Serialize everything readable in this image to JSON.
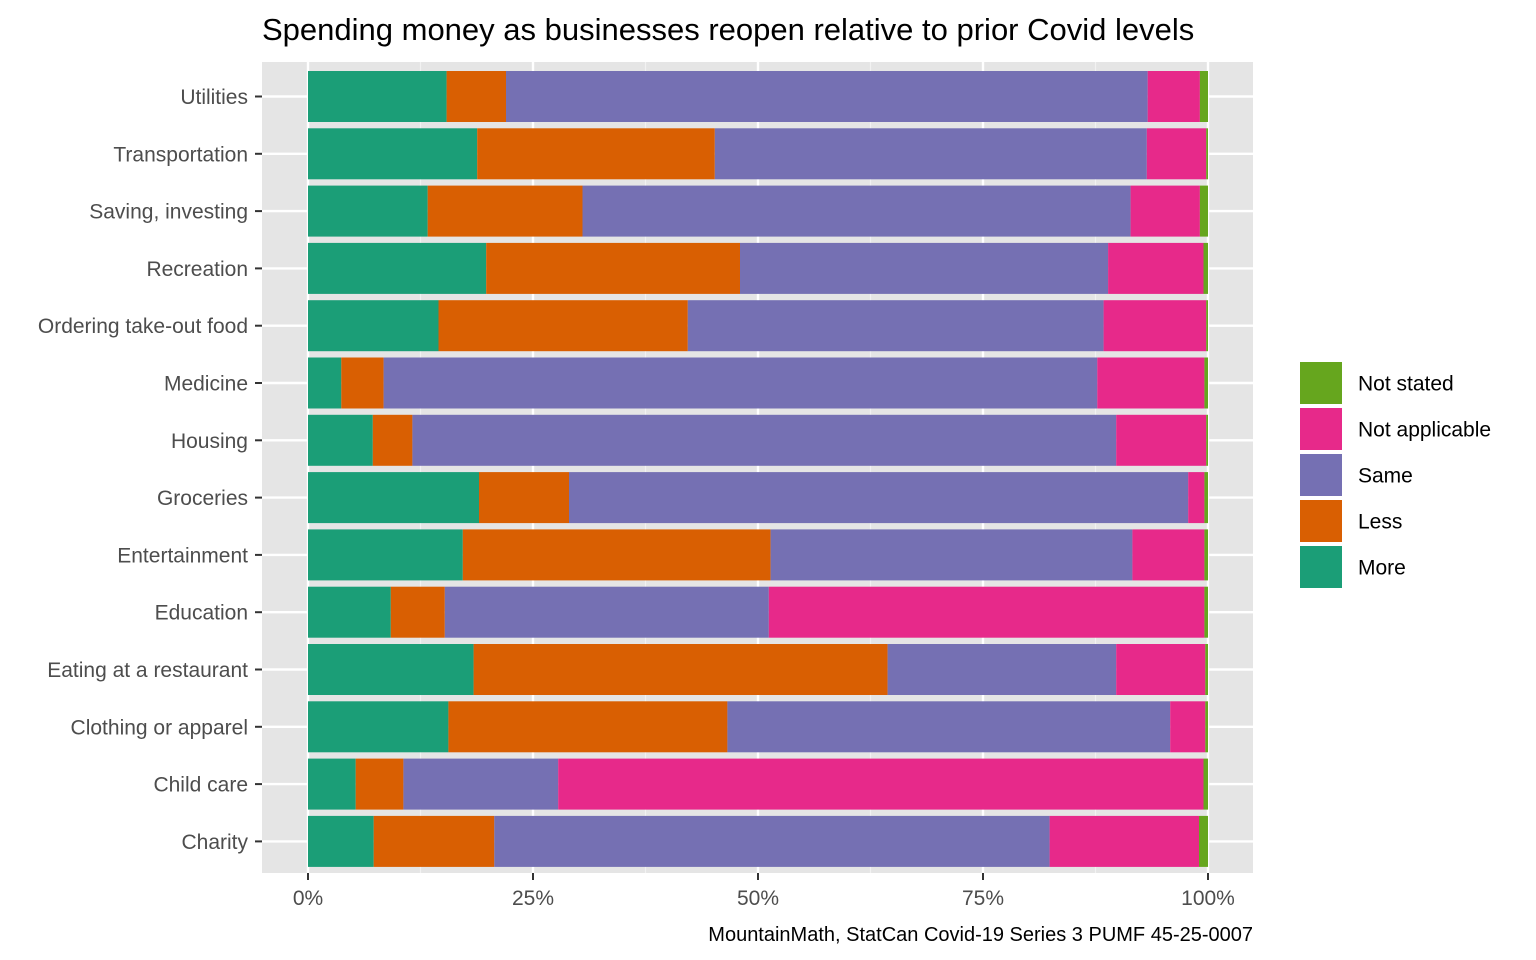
{
  "chart_data": {
    "type": "bar",
    "orientation": "horizontal",
    "stacked": true,
    "normalized": true,
    "title": "Spending money as businesses reopen relative to prior Covid levels",
    "caption": "MountainMath, StatCan Covid-19 Series 3 PUMF 45-25-0007",
    "xlabel": "",
    "ylabel": "",
    "xlim": [
      0,
      1
    ],
    "x_ticks": [
      0,
      0.25,
      0.5,
      0.75,
      1.0
    ],
    "x_tick_labels": [
      "0%",
      "25%",
      "50%",
      "75%",
      "100%"
    ],
    "grid": true,
    "legend_position": "right",
    "categories": [
      "Utilities",
      "Transportation",
      "Saving, investing",
      "Recreation",
      "Ordering take-out food",
      "Medicine",
      "Housing",
      "Groceries",
      "Entertainment",
      "Education",
      "Eating at a restaurant",
      "Clothing or apparel",
      "Child care",
      "Charity"
    ],
    "series": [
      {
        "name": "More",
        "color": "#1B9E77",
        "values": [
          0.154,
          0.188,
          0.133,
          0.198,
          0.145,
          0.037,
          0.072,
          0.19,
          0.172,
          0.092,
          0.184,
          0.156,
          0.053,
          0.073
        ]
      },
      {
        "name": "Less",
        "color": "#D95F02",
        "values": [
          0.066,
          0.264,
          0.172,
          0.282,
          0.277,
          0.047,
          0.044,
          0.1,
          0.342,
          0.06,
          0.46,
          0.31,
          0.053,
          0.134
        ]
      },
      {
        "name": "Same",
        "color": "#7570B3",
        "values": [
          0.713,
          0.48,
          0.609,
          0.409,
          0.462,
          0.793,
          0.782,
          0.688,
          0.402,
          0.36,
          0.254,
          0.492,
          0.172,
          0.617
        ]
      },
      {
        "name": "Not applicable",
        "color": "#E7298A",
        "values": [
          0.058,
          0.066,
          0.077,
          0.106,
          0.114,
          0.119,
          0.1,
          0.018,
          0.08,
          0.484,
          0.099,
          0.039,
          0.717,
          0.166
        ]
      },
      {
        "name": "Not stated",
        "color": "#66A61E",
        "values": [
          0.009,
          0.002,
          0.009,
          0.005,
          0.002,
          0.004,
          0.002,
          0.004,
          0.004,
          0.004,
          0.003,
          0.003,
          0.005,
          0.01
        ]
      }
    ],
    "legend_order": [
      "Not stated",
      "Not applicable",
      "Same",
      "Less",
      "More"
    ]
  }
}
